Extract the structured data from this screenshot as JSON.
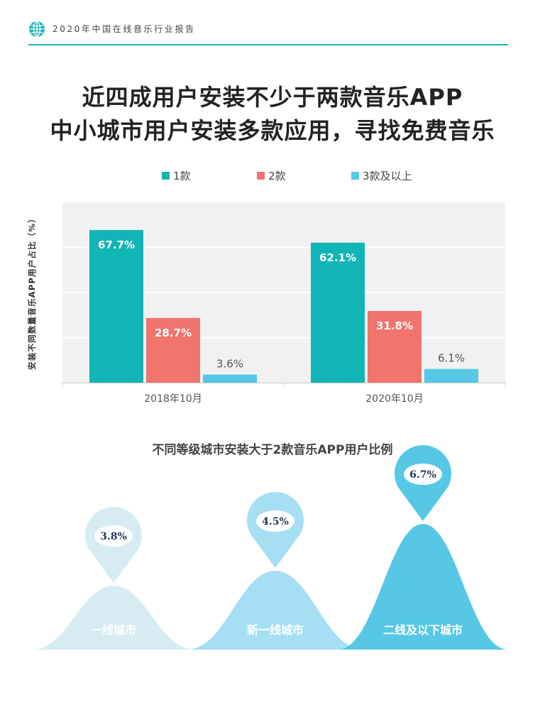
{
  "header": {
    "icon": "globe-icon",
    "text": "2020年中国在线音乐行业报告",
    "accent_color": "#20b2b8"
  },
  "title": {
    "line1": "近四成用户安装不少于两款音乐APP",
    "line2": "中小城市用户安装多款应用，寻找免费音乐"
  },
  "chart_data": [
    {
      "type": "bar",
      "categories": [
        "2018年10月",
        "2020年10月"
      ],
      "series": [
        {
          "name": "1款",
          "values": [
            67.7,
            62.1
          ],
          "color": "#12b5b5",
          "labels": [
            "67.7%",
            "62.1%"
          ]
        },
        {
          "name": "2款",
          "values": [
            28.7,
            31.8
          ],
          "color": "#f1746e",
          "labels": [
            "28.7%",
            "31.8%"
          ]
        },
        {
          "name": "3款及以上",
          "values": [
            3.6,
            6.1
          ],
          "color": "#56c8e5",
          "labels": [
            "3.6%",
            "6.1%"
          ]
        }
      ],
      "ylabel": "安装不同数量音乐APP用户占比（%）",
      "ylim": [
        0,
        80
      ],
      "grid": true,
      "legend_position": "top"
    },
    {
      "type": "area",
      "title": "不同等级城市安装大于2款音乐APP用户比例",
      "categories": [
        "一线城市",
        "新一线城市",
        "二线及以下城市"
      ],
      "values": [
        3.8,
        4.5,
        6.7
      ],
      "labels": [
        "3.8%",
        "4.5%",
        "6.7%"
      ],
      "colors": [
        "#d6ecf2",
        "#a6dff3",
        "#56c8e5"
      ]
    }
  ]
}
